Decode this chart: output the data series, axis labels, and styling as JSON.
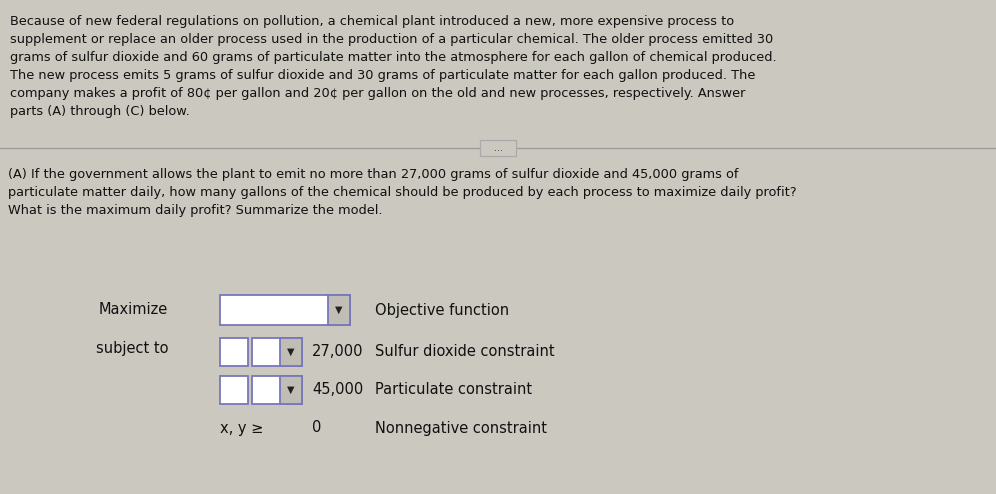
{
  "background_color": "#cbc8c0",
  "text_color": "#111111",
  "paragraph_text": "Because of new federal regulations on pollution, a chemical plant introduced a new, more expensive process to\nsupplement or replace an older process used in the production of a particular chemical. The older process emitted 30\ngrams of sulfur dioxide and 60 grams of particulate matter into the atmosphere for each gallon of chemical produced.\nThe new process emits 5 grams of sulfur dioxide and 30 grams of particulate matter for each gallon produced. The\ncompany makes a profit of 80¢ per gallon and 20¢ per gallon on the old and new processes, respectively. Answer\nparts (A) through (C) below.",
  "section_a_text": "(A) If the government allows the plant to emit no more than 27,000 grams of sulfur dioxide and 45,000 grams of\nparticulate matter daily, how many gallons of the chemical should be produced by each process to maximize daily profit?\nWhat is the maximum daily profit? Summarize the model.",
  "row1_label": "Maximize",
  "row2_label": "subject to",
  "constraints": [
    {
      "value": "27,000",
      "description": "Sulfur dioxide constraint"
    },
    {
      "value": "45,000",
      "description": "Particulate constraint"
    }
  ],
  "nonneg_label": "x, y ≥",
  "nonneg_value": "0",
  "nonneg_description": "Nonnegative constraint",
  "obj_description": "Objective function",
  "separator_line_color": "#999999",
  "box_border_color": "#7777bb",
  "box_fill_color": "#ffffff",
  "dropdown_bg": "#c0bdb5",
  "arrow_color": "#222222",
  "btn_border_color": "#aaaaaa"
}
